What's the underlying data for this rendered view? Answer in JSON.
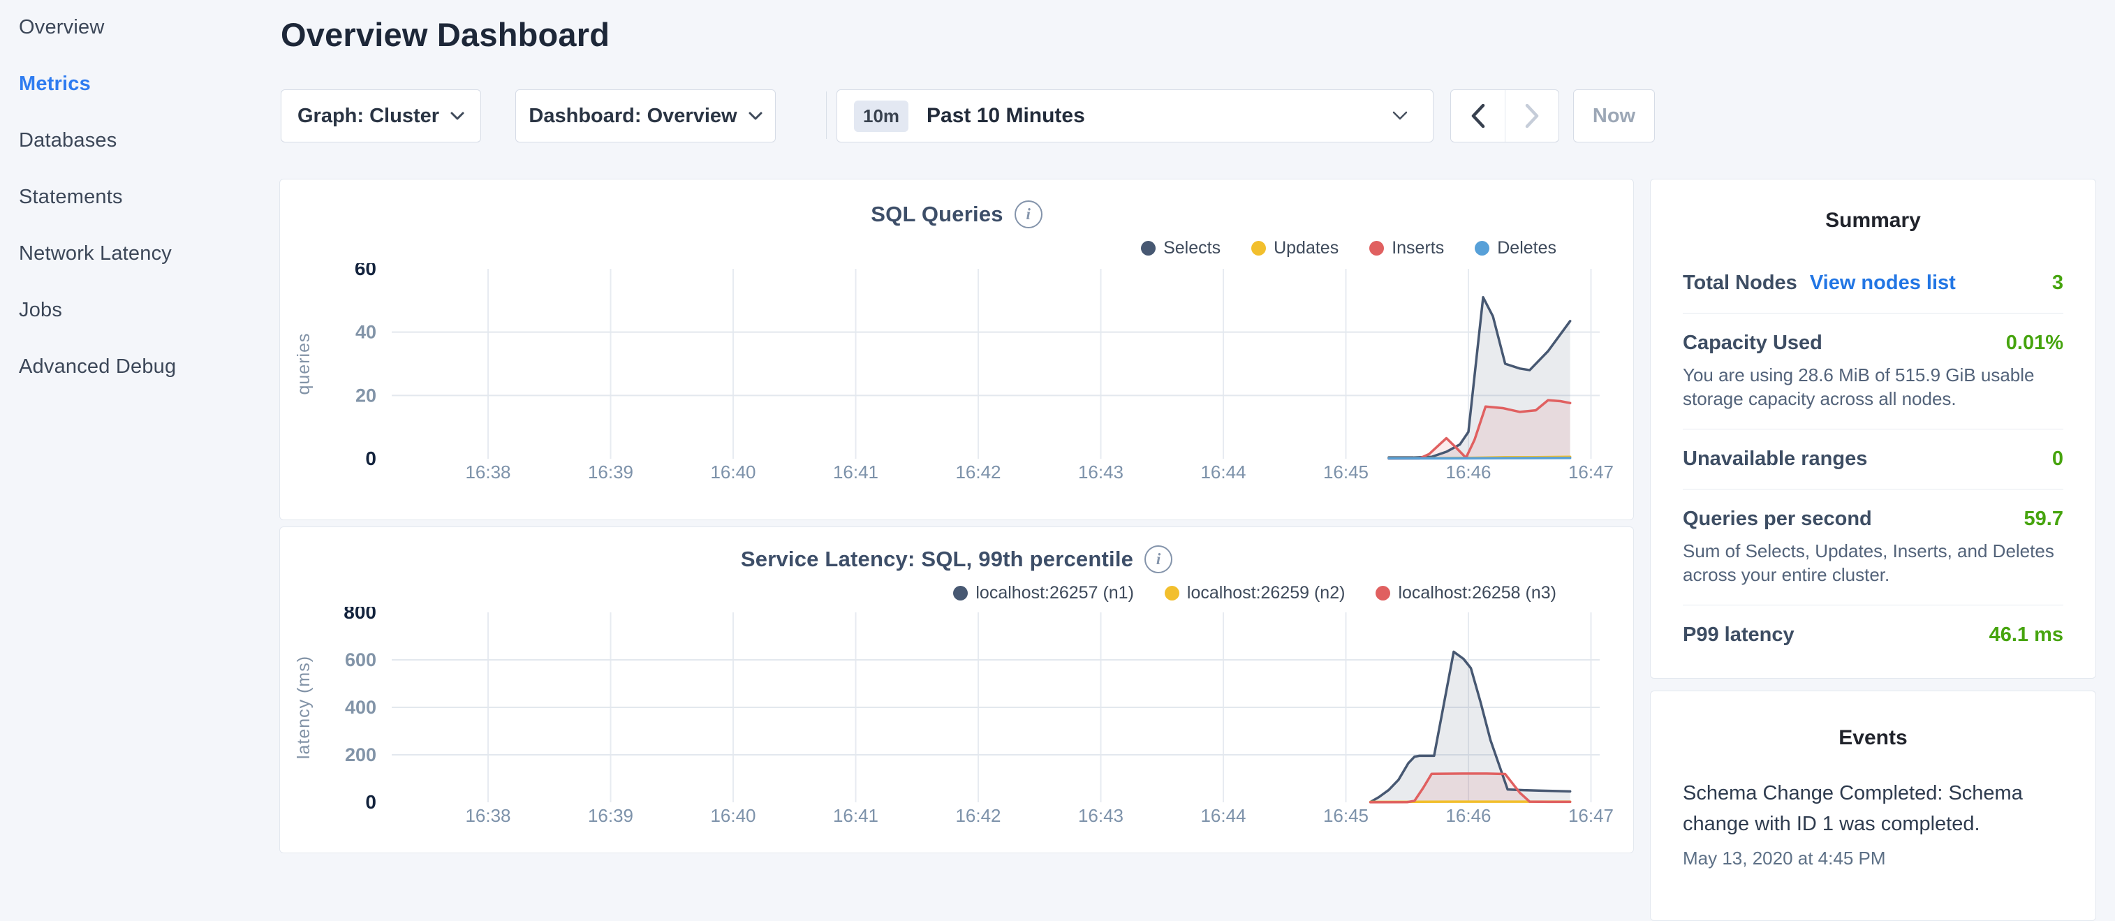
{
  "colors": {
    "accent_blue": "#2f7cf0",
    "link_blue": "#2276e4",
    "green": "#46a40e",
    "disabled_gray": "#9ca7b6",
    "series_navy": "#475872",
    "series_yellow": "#f2bf2d",
    "series_red": "#e06060",
    "series_blue": "#57a0d8"
  },
  "sidebar": {
    "items": [
      {
        "label": "Overview",
        "active": false
      },
      {
        "label": "Metrics",
        "active": true
      },
      {
        "label": "Databases",
        "active": false
      },
      {
        "label": "Statements",
        "active": false
      },
      {
        "label": "Network Latency",
        "active": false
      },
      {
        "label": "Jobs",
        "active": false
      },
      {
        "label": "Advanced Debug",
        "active": false
      }
    ]
  },
  "header": {
    "title": "Overview Dashboard"
  },
  "toolbar": {
    "graph_dropdown_label": "Graph: Cluster",
    "dashboard_dropdown_label": "Dashboard: Overview",
    "time": {
      "badge": "10m",
      "label": "Past 10 Minutes"
    },
    "now_label": "Now"
  },
  "chart_data": [
    {
      "type": "area",
      "title": "SQL Queries",
      "ylabel": "queries",
      "ylim": [
        0,
        60
      ],
      "y_ticks": [
        0,
        20,
        40,
        60
      ],
      "x_tick_labels": [
        "16:38",
        "16:39",
        "16:40",
        "16:41",
        "16:42",
        "16:43",
        "16:44",
        "16:45",
        "16:46",
        "16:47"
      ],
      "x_tick_start_minute": 38,
      "grid": true,
      "legend_position": "top-right",
      "series": [
        {
          "name": "Selects",
          "color": "#475872",
          "points": [
            [
              45.35,
              0.4
            ],
            [
              45.55,
              0.4
            ],
            [
              45.7,
              0.6
            ],
            [
              45.82,
              2.2
            ],
            [
              45.93,
              4.5
            ],
            [
              46.0,
              8.5
            ],
            [
              46.12,
              51
            ],
            [
              46.2,
              45
            ],
            [
              46.3,
              30
            ],
            [
              46.42,
              28.5
            ],
            [
              46.5,
              28
            ],
            [
              46.65,
              34
            ],
            [
              46.83,
              43.5
            ]
          ]
        },
        {
          "name": "Updates",
          "color": "#f2bf2d",
          "points": [
            [
              45.35,
              0.15
            ],
            [
              45.8,
              0.2
            ],
            [
              46.05,
              0.3
            ],
            [
              46.3,
              0.5
            ],
            [
              46.55,
              0.5
            ],
            [
              46.83,
              0.6
            ]
          ]
        },
        {
          "name": "Inserts",
          "color": "#e06060",
          "points": [
            [
              45.35,
              0.05
            ],
            [
              45.6,
              0.1
            ],
            [
              45.68,
              1.5
            ],
            [
              45.82,
              6.5
            ],
            [
              45.9,
              3.5
            ],
            [
              45.98,
              0.3
            ],
            [
              46.05,
              6
            ],
            [
              46.14,
              16.5
            ],
            [
              46.28,
              16
            ],
            [
              46.42,
              14.8
            ],
            [
              46.55,
              15.3
            ],
            [
              46.65,
              18.5
            ],
            [
              46.75,
              18.2
            ],
            [
              46.83,
              17.6
            ]
          ]
        },
        {
          "name": "Deletes",
          "color": "#57a0d8",
          "points": [
            [
              45.35,
              0.1
            ],
            [
              46.0,
              0.15
            ],
            [
              46.4,
              0.2
            ],
            [
              46.83,
              0.25
            ]
          ]
        }
      ]
    },
    {
      "type": "area",
      "title": "Service Latency: SQL, 99th percentile",
      "ylabel": "latency (ms)",
      "ylim": [
        0,
        800
      ],
      "y_ticks": [
        0,
        200,
        400,
        600,
        800
      ],
      "x_tick_labels": [
        "16:38",
        "16:39",
        "16:40",
        "16:41",
        "16:42",
        "16:43",
        "16:44",
        "16:45",
        "16:46",
        "16:47"
      ],
      "x_tick_start_minute": 38,
      "grid": true,
      "legend_position": "top-right",
      "series": [
        {
          "name": "localhost:26257 (n1)",
          "color": "#475872",
          "points": [
            [
              45.2,
              1
            ],
            [
              45.27,
              22
            ],
            [
              45.35,
              52
            ],
            [
              45.43,
              95
            ],
            [
              45.51,
              165
            ],
            [
              45.56,
              192
            ],
            [
              45.6,
              196
            ],
            [
              45.72,
              196
            ],
            [
              45.88,
              634
            ],
            [
              45.96,
              604
            ],
            [
              46.02,
              565
            ],
            [
              46.1,
              420
            ],
            [
              46.18,
              262
            ],
            [
              46.32,
              54
            ],
            [
              46.45,
              51
            ],
            [
              46.6,
              49
            ],
            [
              46.83,
              46
            ]
          ]
        },
        {
          "name": "localhost:26259 (n2)",
          "color": "#f2bf2d",
          "points": [
            [
              45.2,
              1.5
            ],
            [
              45.5,
              2
            ],
            [
              45.9,
              2.5
            ],
            [
              46.3,
              2.5
            ],
            [
              46.83,
              2.5
            ]
          ]
        },
        {
          "name": "localhost:26258 (n3)",
          "color": "#e06060",
          "points": [
            [
              45.2,
              0.5
            ],
            [
              45.5,
              0.8
            ],
            [
              45.56,
              6
            ],
            [
              45.63,
              60
            ],
            [
              45.7,
              120
            ],
            [
              45.95,
              121
            ],
            [
              46.15,
              121
            ],
            [
              46.3,
              119
            ],
            [
              46.42,
              40
            ],
            [
              46.5,
              2.5
            ],
            [
              46.65,
              2
            ],
            [
              46.83,
              2
            ]
          ]
        }
      ]
    }
  ],
  "summary": {
    "title": "Summary",
    "rows": [
      {
        "label": "Total Nodes",
        "link": "View nodes list",
        "value": "3"
      },
      {
        "label": "Capacity Used",
        "value": "0.01%",
        "description": "You are using 28.6 MiB of 515.9 GiB usable storage capacity across all nodes."
      },
      {
        "label": "Unavailable ranges",
        "value": "0"
      },
      {
        "label": "Queries per second",
        "value": "59.7",
        "description": "Sum of Selects, Updates, Inserts, and Deletes across your entire cluster."
      },
      {
        "label": "P99 latency",
        "value": "46.1 ms"
      }
    ]
  },
  "events": {
    "title": "Events",
    "items": [
      {
        "message": "Schema Change Completed: Schema change with ID 1 was completed.",
        "timestamp": "May 13, 2020 at 4:45 PM"
      }
    ]
  }
}
